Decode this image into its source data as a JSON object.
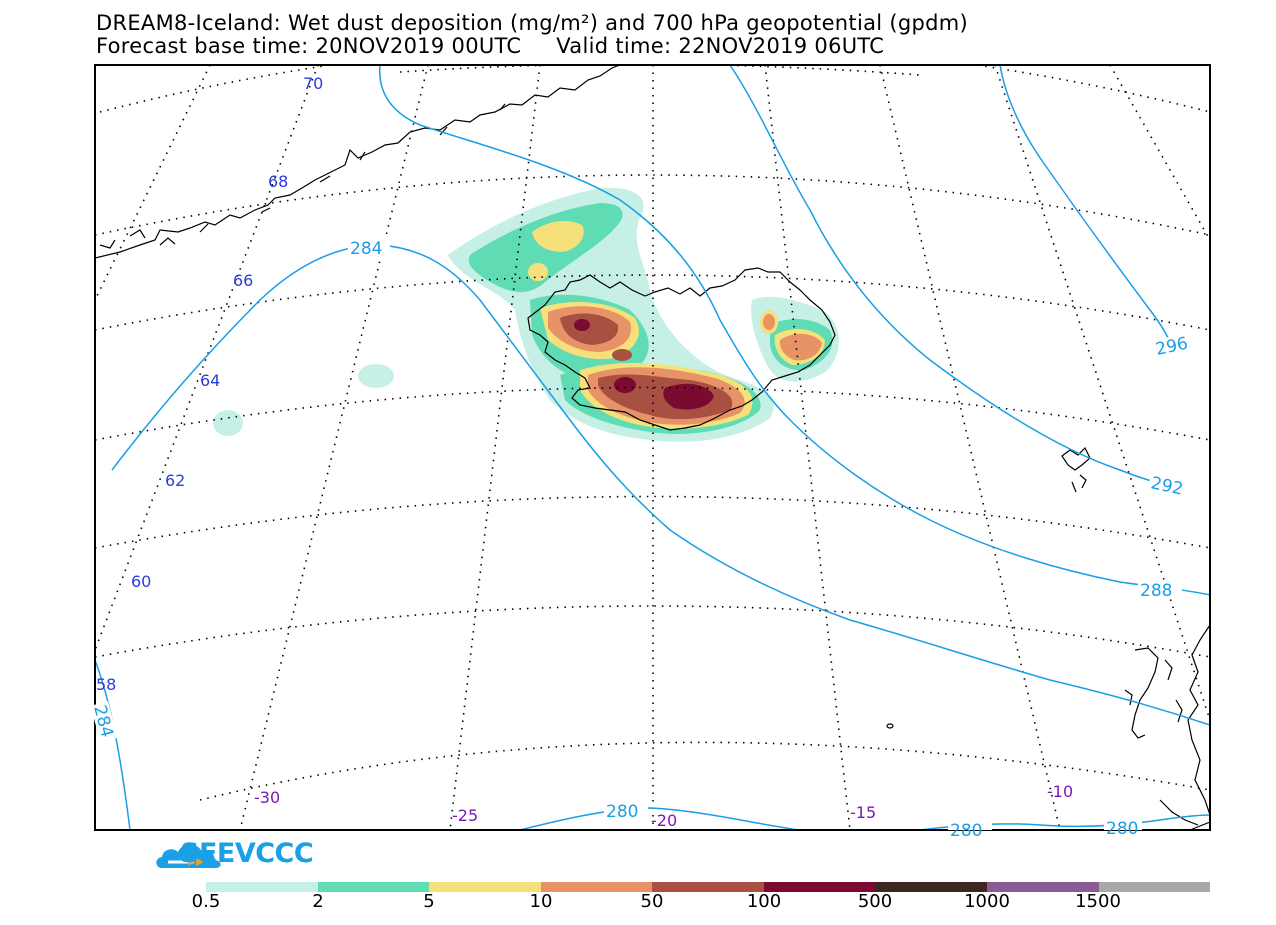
{
  "title": {
    "line1": "DREAM8-Iceland: Wet dust deposition (mg/m²) and 700 hPa geopotential (gpdm)",
    "line2": "Forecast base time: 20NOV2019 00UTC     Valid time: 22NOV2019 06UTC"
  },
  "latitude_labels": [
    "70",
    "68",
    "66",
    "64",
    "62",
    "60",
    "58"
  ],
  "longitude_labels": [
    "-30",
    "-25",
    "-20",
    "-15",
    "-10"
  ],
  "contour_labels": [
    "284",
    "284",
    "280",
    "280",
    "280",
    "288",
    "292",
    "296"
  ],
  "logo": {
    "text": "SEEVCCC",
    "color": "#1aa0e6"
  },
  "colorbar": {
    "labels": [
      "0.5",
      "2",
      "5",
      "10",
      "50",
      "100",
      "500",
      "1000",
      "1500"
    ],
    "colors": [
      "#c6f0e6",
      "#5fdcb4",
      "#f5e07c",
      "#e89268",
      "#a85042",
      "#7a0a30",
      "#3c2820",
      "#8a5c96",
      "#a8a8a8"
    ]
  },
  "colors": {
    "contour": "#1a9ee6",
    "lat_label": "#2a3cdc",
    "lon_label": "#7a1ab4"
  }
}
